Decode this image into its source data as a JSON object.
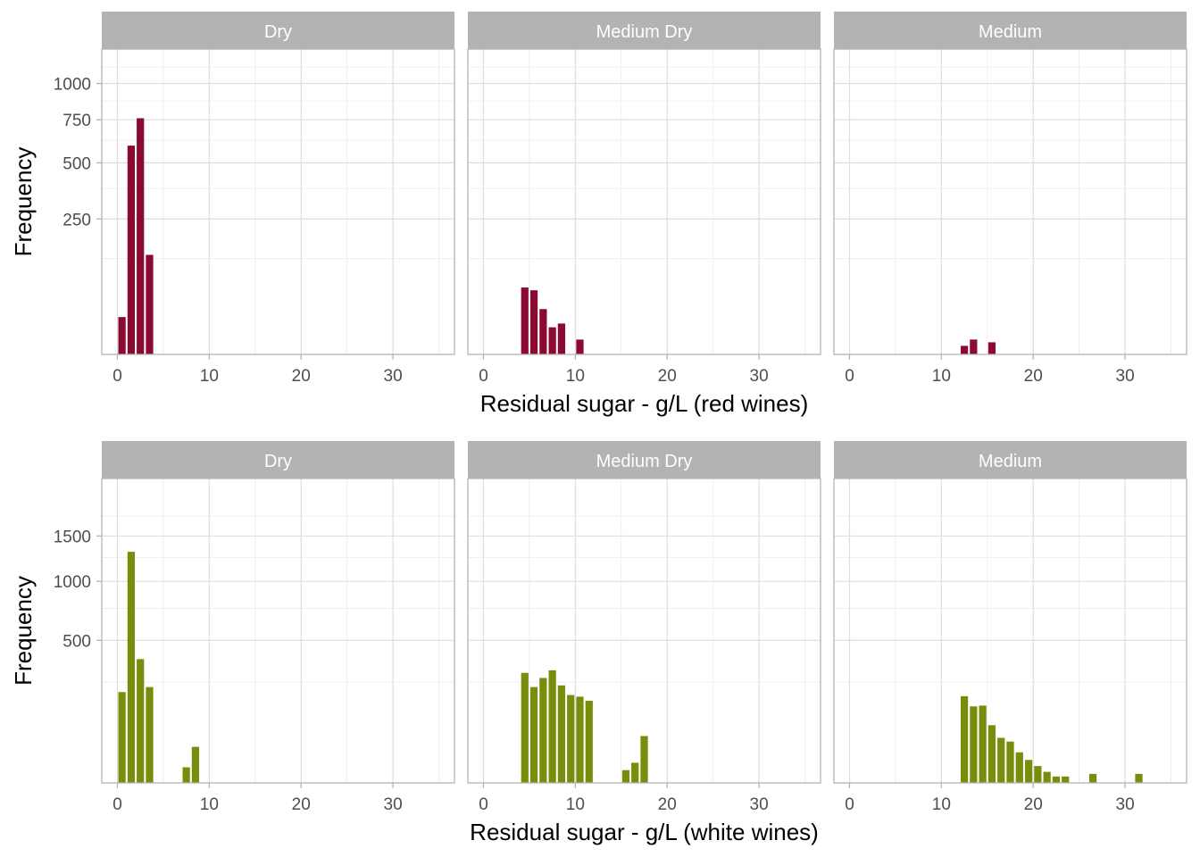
{
  "chart_data": [
    {
      "type": "bar",
      "facet_labels": [
        "Dry",
        "Medium Dry",
        "Medium"
      ],
      "xlabel": "Residual sugar - g/L (red wines)",
      "ylabel": "Frequency",
      "x_ticks": [
        0,
        10,
        20,
        30
      ],
      "y_ticks": [
        250,
        500,
        750,
        1000
      ],
      "y_scale": "sqrt",
      "xlim": [
        -1.7,
        36.7
      ],
      "ylim": [
        0,
        1270
      ],
      "color": "#8B0A32",
      "panels": [
        {
          "facet": "Dry",
          "x": [
            0.5,
            1.5,
            2.5,
            3.5
          ],
          "values": [
            19,
            594,
            760,
            135
          ]
        },
        {
          "facet": "Medium Dry",
          "x": [
            4.5,
            5.5,
            6.5,
            7.5,
            8.5,
            10.5
          ],
          "values": [
            61,
            56,
            28,
            10,
            13,
            3
          ]
        },
        {
          "facet": "Medium",
          "x": [
            12.5,
            13.5,
            15.5
          ],
          "values": [
            1,
            3,
            2
          ]
        }
      ]
    },
    {
      "type": "bar",
      "facet_labels": [
        "Dry",
        "Medium Dry",
        "Medium"
      ],
      "xlabel": "Residual sugar - g/L (white wines)",
      "ylabel": "Frequency",
      "x_ticks": [
        0,
        10,
        20,
        30
      ],
      "y_ticks": [
        500,
        1000,
        1500
      ],
      "y_scale": "sqrt",
      "xlim": [
        -1.7,
        36.7
      ],
      "ylim": [
        0,
        2280
      ],
      "color": "#7A8C0C",
      "panels": [
        {
          "facet": "Dry",
          "x": [
            0.5,
            1.5,
            2.5,
            3.5,
            7.5,
            8.5
          ],
          "values": [
            203,
            1314,
            377,
            226,
            6,
            32
          ]
        },
        {
          "facet": "Medium Dry",
          "x": [
            4.5,
            5.5,
            6.5,
            7.5,
            8.5,
            9.5,
            10.5,
            11.5,
            15.5,
            16.5,
            17.5
          ],
          "values": [
            298,
            226,
            271,
            312,
            234,
            190,
            183,
            166,
            4,
            10,
            54
          ]
        },
        {
          "facet": "Medium",
          "x": [
            12.5,
            13.5,
            14.5,
            15.5,
            16.5,
            17.5,
            18.5,
            19.5,
            20.5,
            21.5,
            22.5,
            23.5,
            26.5,
            31.5
          ],
          "values": [
            185,
            144,
            147,
            82,
            50,
            42,
            23,
            13,
            7,
            3,
            1,
            1,
            2,
            2
          ]
        }
      ]
    }
  ]
}
